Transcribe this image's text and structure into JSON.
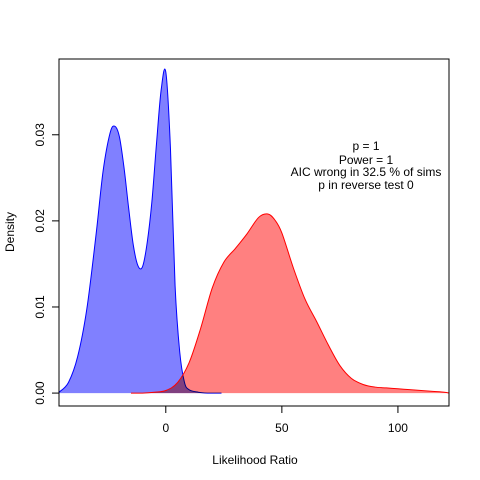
{
  "chart_data": {
    "type": "area",
    "xlabel": "Likelihood Ratio",
    "ylabel": "Density",
    "xlim": [
      -46,
      122
    ],
    "ylim": [
      -0.0015,
      0.0388
    ],
    "x_ticks": [
      0,
      50,
      100
    ],
    "x_tick_labels": [
      "0",
      "50",
      "100"
    ],
    "y_ticks": [
      0.0,
      0.01,
      0.02,
      0.03
    ],
    "y_tick_labels": [
      "0.00",
      "0.01",
      "0.02",
      "0.03"
    ],
    "grid": false,
    "legend": "none",
    "annotations": [
      "p =  1",
      "Power =  1",
      "AIC wrong in  32.5 % of sims",
      "p in reverse test  0"
    ],
    "series": [
      {
        "color": "#0000ff",
        "fill": "#8080ff",
        "x": [
          -46,
          -42,
          -38,
          -34,
          -30,
          -27,
          -24,
          -22,
          -20,
          -18,
          -16,
          -14,
          -12,
          -10,
          -8,
          -6,
          -4,
          -2,
          0,
          2,
          4,
          6,
          8,
          10,
          14,
          18,
          22,
          24
        ],
        "y": [
          0.0001,
          0.0012,
          0.0042,
          0.0098,
          0.0185,
          0.0258,
          0.0302,
          0.031,
          0.0298,
          0.0262,
          0.0215,
          0.0172,
          0.0148,
          0.0147,
          0.0175,
          0.0222,
          0.029,
          0.0352,
          0.0373,
          0.0285,
          0.0125,
          0.0048,
          0.0013,
          0.0004,
          0.0001,
          0.0,
          0.0,
          0.0
        ]
      },
      {
        "color": "#ff0000",
        "fill": "#ff8080",
        "x": [
          -15,
          -10,
          -5,
          0,
          5,
          10,
          15,
          20,
          25,
          30,
          35,
          40,
          44,
          47,
          50,
          55,
          60,
          65,
          70,
          75,
          80,
          85,
          90,
          95,
          100,
          105,
          110,
          115,
          120,
          122
        ],
        "y": [
          0.0,
          0.0,
          0.0001,
          0.0003,
          0.0012,
          0.0035,
          0.0075,
          0.0122,
          0.0152,
          0.0168,
          0.0185,
          0.0204,
          0.0208,
          0.0201,
          0.0186,
          0.0145,
          0.0109,
          0.0083,
          0.0056,
          0.0032,
          0.0017,
          0.001,
          0.0007,
          0.0006,
          0.0005,
          0.0004,
          0.0003,
          0.0002,
          0.0001,
          0.0
        ]
      }
    ]
  }
}
